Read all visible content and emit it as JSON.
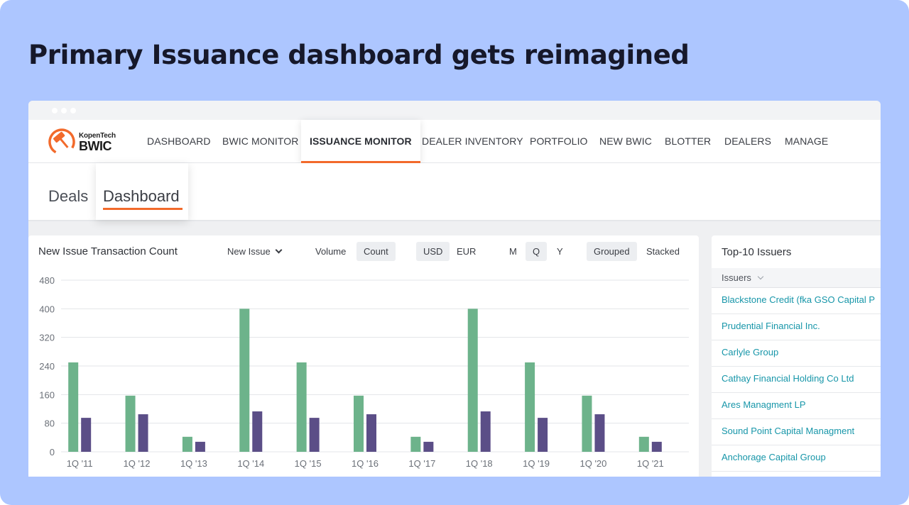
{
  "headline": "Primary Issuance dashboard gets reimagined",
  "logo": {
    "top": "KopenTech",
    "bottom": "BWIC",
    "accent": "#f26a2b"
  },
  "nav": {
    "items": [
      "DASHBOARD",
      "BWIC MONITOR",
      "ISSUANCE MONITOR",
      "DEALER INVENTORY",
      "PORTFOLIO",
      "NEW BWIC",
      "BLOTTER",
      "DEALERS",
      "MANAGE"
    ],
    "active": "ISSUANCE MONITOR"
  },
  "subnav": {
    "deals": "Deals",
    "dashboard": "Dashboard"
  },
  "chart_panel": {
    "title": "New Issue Transaction Count",
    "dropdown": "New Issue",
    "metric_toggle": {
      "volume": "Volume",
      "count": "Count",
      "selected": "Count"
    },
    "currency_toggle": {
      "usd": "USD",
      "eur": "EUR",
      "selected": "USD"
    },
    "period_toggle": {
      "m": "M",
      "q": "Q",
      "y": "Y",
      "selected": "Q"
    },
    "layout_toggle": {
      "grouped": "Grouped",
      "stacked": "Stacked",
      "selected": "Grouped"
    }
  },
  "chart_data": {
    "type": "bar",
    "categories": [
      "1Q '11",
      "1Q '12",
      "1Q '13",
      "1Q '14",
      "1Q '15",
      "1Q '16",
      "1Q '17",
      "1Q '18",
      "1Q '19",
      "1Q '20",
      "1Q '21"
    ],
    "series": [
      {
        "values": [
          250,
          157,
          42,
          400,
          250,
          157,
          42,
          400,
          250,
          157,
          42
        ],
        "color": "#6db38b"
      },
      {
        "values": [
          95,
          105,
          28,
          113,
          95,
          105,
          28,
          113,
          95,
          105,
          28
        ],
        "color": "#5b4e87"
      }
    ],
    "yticks": [
      0,
      80,
      160,
      240,
      320,
      400,
      480
    ],
    "ylim": [
      0,
      480
    ],
    "grid": true
  },
  "issuers_panel": {
    "title": "Top-10 Issuers",
    "column": "Issuers",
    "rows": [
      "Blackstone Credit (fka GSO Capital P",
      "Prudential Financial Inc.",
      "Carlyle Group",
      "Cathay Financial Holding Co Ltd",
      "Ares Managment LP",
      "Sound Point Capital Managment",
      "Anchorage Capital Group"
    ]
  }
}
